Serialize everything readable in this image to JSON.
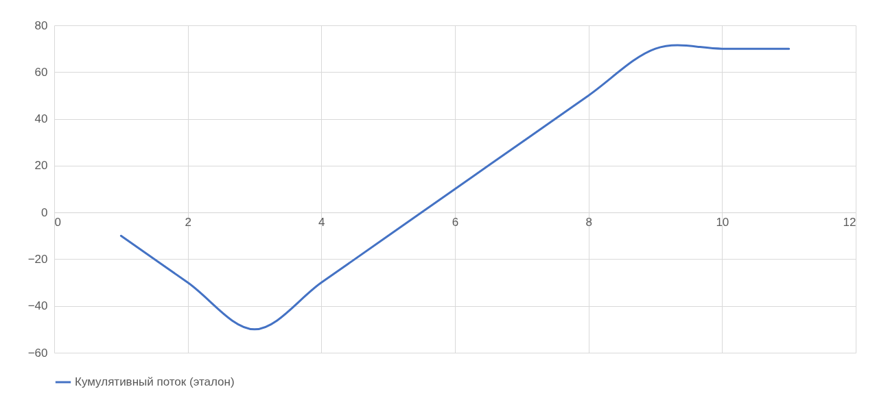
{
  "chart_data": {
    "type": "line",
    "x": [
      1,
      2,
      3,
      4,
      5,
      6,
      7,
      8,
      9,
      10,
      11
    ],
    "series": [
      {
        "name": "Кумулятивный поток (эталон)",
        "color": "#4472c4",
        "values": [
          -10,
          -30,
          -50,
          -30,
          -10,
          10,
          30,
          50,
          70,
          70,
          70
        ]
      }
    ],
    "xlim": [
      0,
      12
    ],
    "xticks": [
      0,
      2,
      4,
      6,
      8,
      10,
      12
    ],
    "ylim": [
      -60,
      80
    ],
    "yticks": [
      -60,
      -40,
      -20,
      0,
      20,
      40,
      60,
      80
    ],
    "grid": true,
    "legend": "bottom",
    "marker": "none",
    "line_style": "solid"
  }
}
